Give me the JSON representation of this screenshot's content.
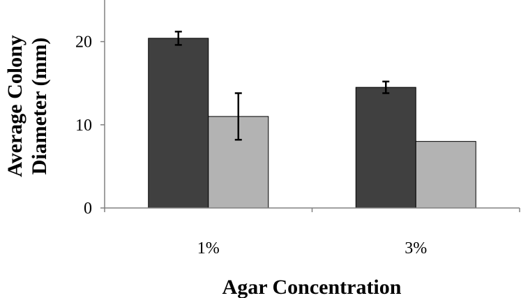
{
  "chart_data": {
    "type": "bar",
    "title": "",
    "xlabel": "Agar Concentration",
    "ylabel_lines": [
      "Average Colony",
      "Diameter  (mm)"
    ],
    "categories": [
      "1%",
      "3%"
    ],
    "ylim": [
      0,
      25
    ],
    "yticks": [
      0,
      10,
      20
    ],
    "grid": false,
    "legend": "none",
    "series": [
      {
        "values": [
          20.4,
          14.5
        ],
        "errors": [
          0.8,
          0.7
        ],
        "color": "#404040"
      },
      {
        "values": [
          11.0,
          8.0
        ],
        "errors": [
          2.8,
          null
        ],
        "color": "#b3b3b3"
      }
    ],
    "colors": {
      "axis": "#808080",
      "bar_border": "#000000",
      "error_bar": "#000000"
    }
  }
}
